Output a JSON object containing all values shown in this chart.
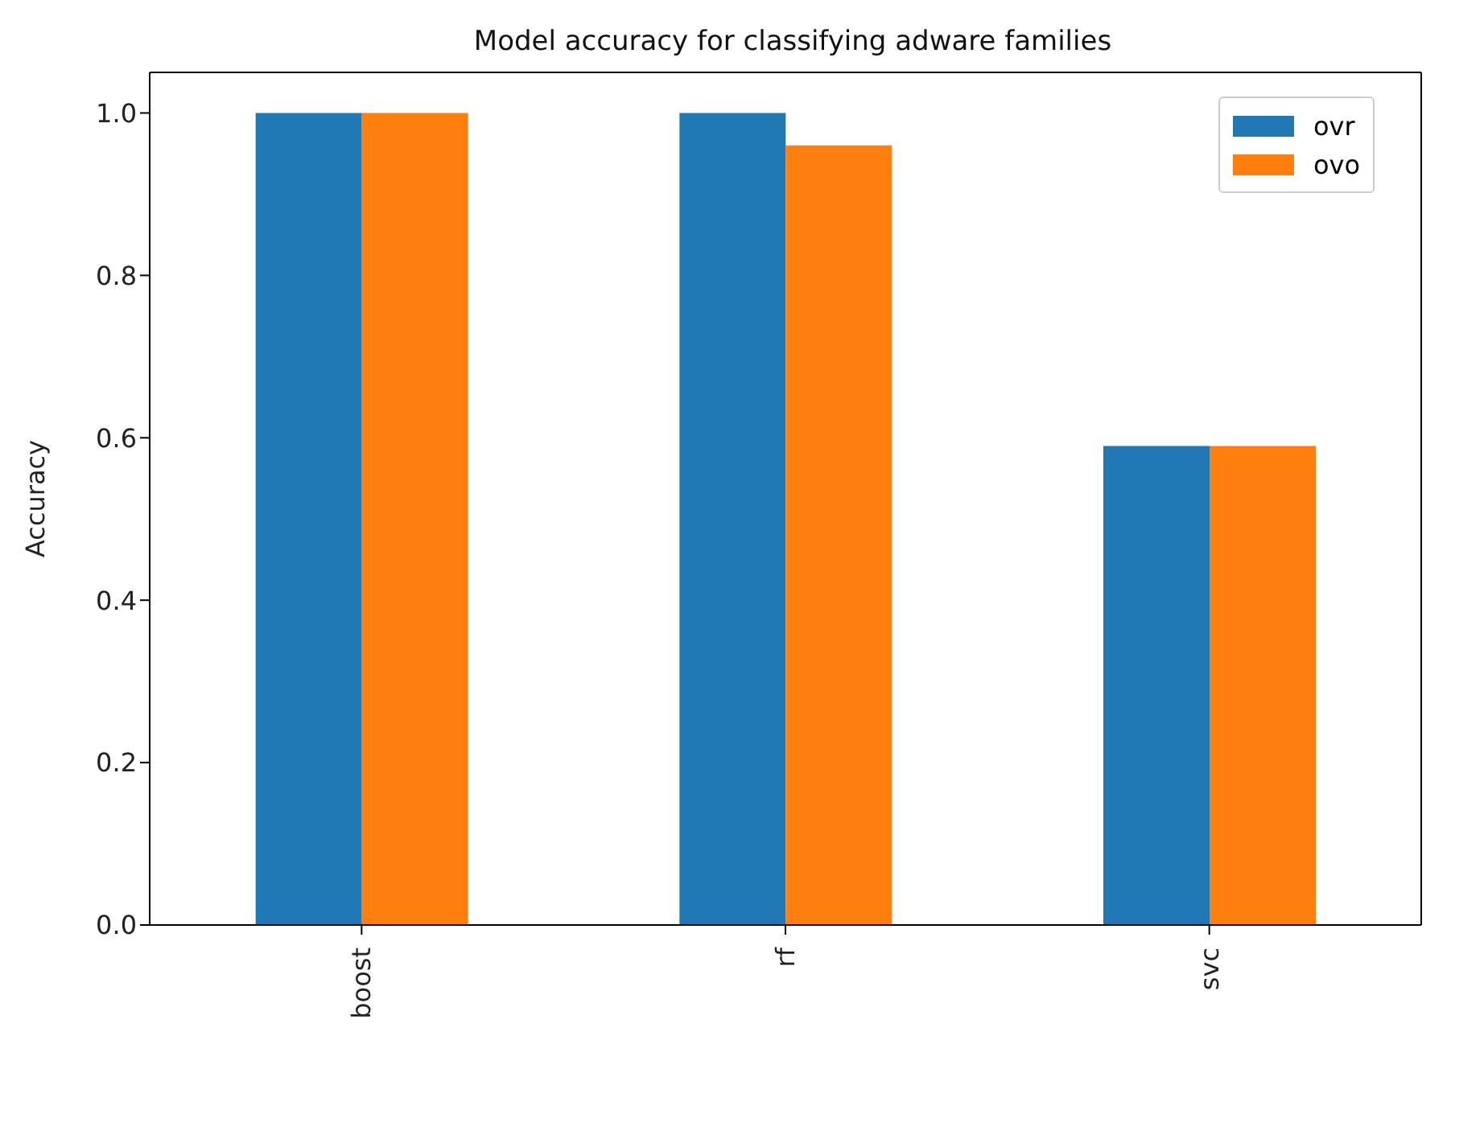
{
  "chart_data": {
    "type": "bar",
    "title": "Model accuracy for classifying adware families",
    "ylabel": "Accuracy",
    "categories": [
      "boost",
      "rf",
      "svc"
    ],
    "series": [
      {
        "name": "ovr",
        "color": "#1f77b4",
        "values": [
          1.0,
          1.0,
          0.59
        ]
      },
      {
        "name": "ovo",
        "color": "#ff7f0e",
        "values": [
          1.0,
          0.96,
          0.59
        ]
      }
    ],
    "ylim": [
      0,
      1.05
    ],
    "yticks": [
      {
        "value": 0,
        "label": "0.0"
      },
      0.2,
      0.4,
      0.6,
      0.8,
      {
        "value": 1,
        "label": "1.0"
      }
    ],
    "grid": false,
    "legend": "top right"
  }
}
